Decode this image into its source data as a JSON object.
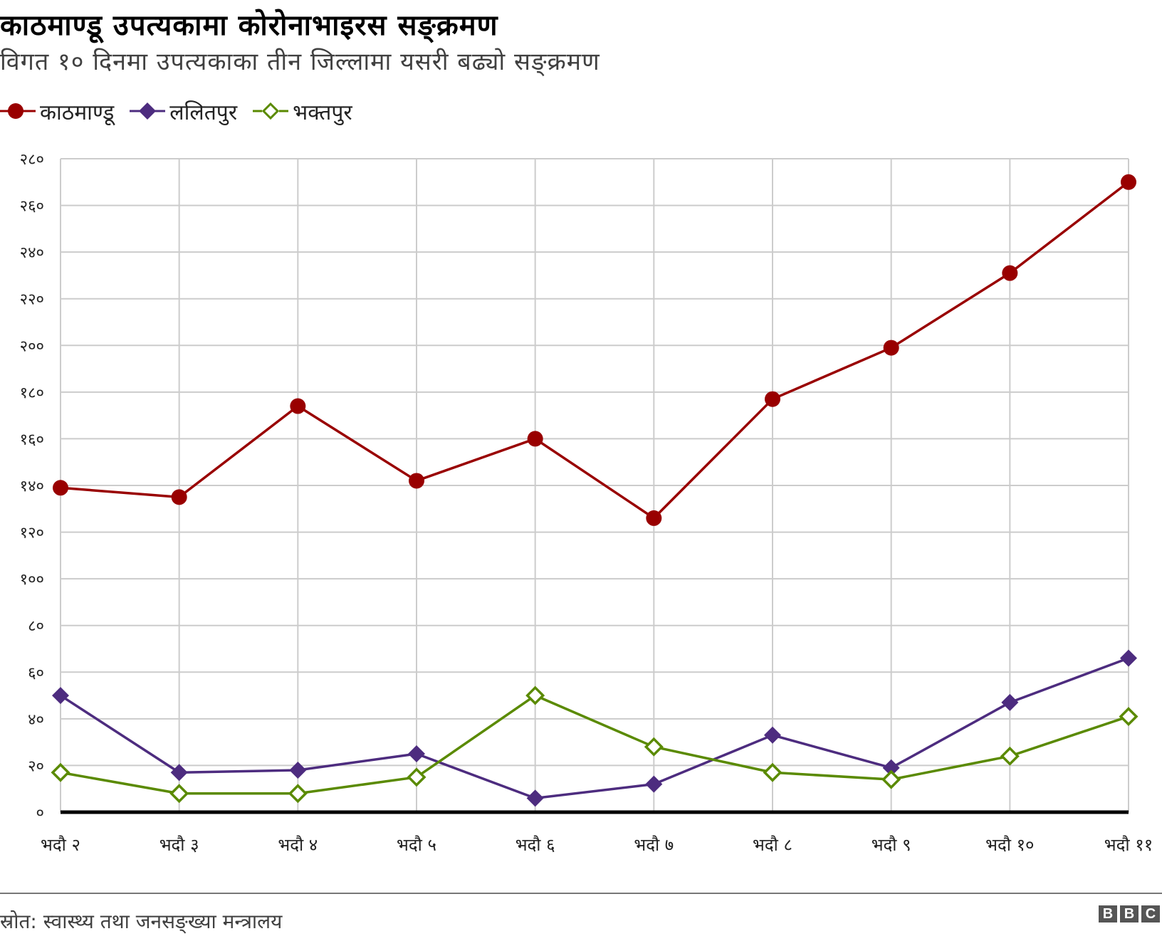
{
  "header": {
    "title": "काठमाण्डू उपत्यकामा कोरोनाभाइरस सङ्क्रमण",
    "subtitle": "विगत १० दिनमा उपत्यकाका तीन जिल्लामा यसरी बढ्यो सङ्क्रमण"
  },
  "legend": [
    {
      "label": "काठमाण्डू",
      "color": "#990000",
      "marker": "filled-circle"
    },
    {
      "label": "ललितपुर",
      "color": "#4d2c7f",
      "marker": "filled-diamond"
    },
    {
      "label": "भक्तपुर",
      "color": "#5a8a00",
      "marker": "hollow-diamond"
    }
  ],
  "footer": {
    "source": "स्रोत: स्वास्थ्य तथा जनसङ्ख्या मन्त्रालय",
    "logo": [
      "B",
      "B",
      "C"
    ]
  },
  "colors": {
    "kathmandu": "#990000",
    "lalitpur": "#4d2c7f",
    "bhaktapur": "#5a8a00",
    "grid": "#cccccc",
    "axis": "#000000"
  },
  "chart_data": {
    "type": "line",
    "title": "काठमाण्डू उपत्यकामा कोरोनाभाइरस सङ्क्रमण",
    "subtitle": "विगत १० दिनमा उपत्यकाका तीन जिल्लामा यसरी बढ्यो सङ्क्रमण",
    "xlabel": "",
    "ylabel": "",
    "categories": [
      "भदौ २",
      "भदौ ३",
      "भदौ ४",
      "भदौ ५",
      "भदौ ६",
      "भदौ ७",
      "भदौ ८",
      "भदौ ९",
      "भदौ १०",
      "भदौ ११"
    ],
    "x": [
      2,
      3,
      4,
      5,
      6,
      7,
      8,
      9,
      10,
      11
    ],
    "series": [
      {
        "name": "काठमाण्डू",
        "color": "#990000",
        "marker": "circle",
        "values": [
          139,
          135,
          174,
          142,
          160,
          126,
          177,
          199,
          231,
          270
        ]
      },
      {
        "name": "ललितपुर",
        "color": "#4d2c7f",
        "marker": "diamond",
        "values": [
          50,
          17,
          18,
          25,
          6,
          12,
          33,
          19,
          47,
          66
        ]
      },
      {
        "name": "भक्तपुर",
        "color": "#5a8a00",
        "marker": "hollow-diamond",
        "values": [
          17,
          8,
          8,
          15,
          50,
          28,
          17,
          14,
          24,
          41
        ]
      }
    ],
    "ylim": [
      0,
      280
    ],
    "yticks": [
      0,
      20,
      40,
      60,
      80,
      100,
      120,
      140,
      160,
      180,
      200,
      220,
      240,
      260,
      280
    ],
    "ytick_labels": [
      "०",
      "२०",
      "४०",
      "६०",
      "८०",
      "१००",
      "१२०",
      "१४०",
      "१६०",
      "१८०",
      "२००",
      "२२०",
      "२४०",
      "२६०",
      "२८०"
    ],
    "grid": true,
    "legend_position": "top-left"
  }
}
